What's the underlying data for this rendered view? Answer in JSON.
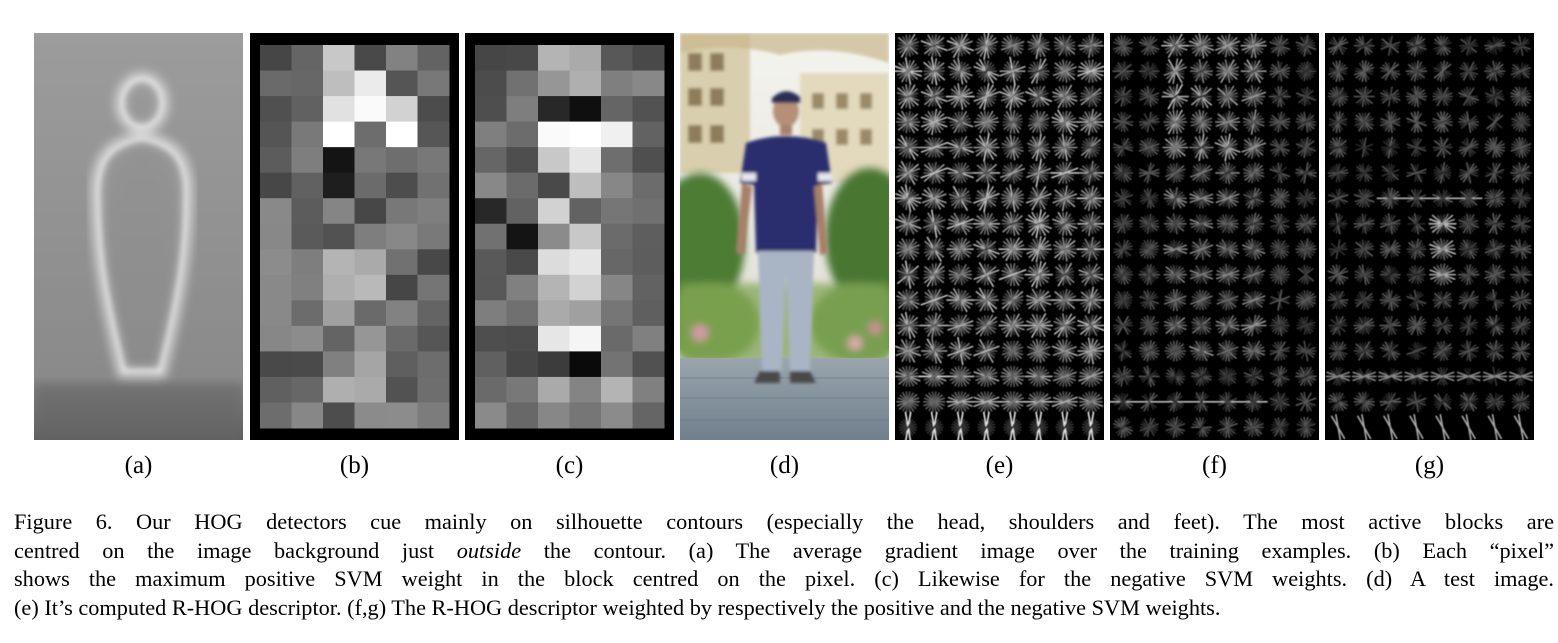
{
  "figure": {
    "panels": [
      {
        "id": "a",
        "label": "(a)",
        "content": "average-gradient-image"
      },
      {
        "id": "b",
        "label": "(b)",
        "content": "positive-svm-weight-map"
      },
      {
        "id": "c",
        "label": "(c)",
        "content": "negative-svm-weight-map"
      },
      {
        "id": "d",
        "label": "(d)",
        "content": "test-image-person"
      },
      {
        "id": "e",
        "label": "(e)",
        "content": "r-hog-descriptor"
      },
      {
        "id": "f",
        "label": "(f)",
        "content": "r-hog-positive-weighted"
      },
      {
        "id": "g",
        "label": "(g)",
        "content": "r-hog-negative-weighted"
      }
    ],
    "caption": {
      "line1": "Figure 6. Our HOG detectors cue mainly on silhouette contours (especially the head, shoulders and feet).  The most active blocks are",
      "line2_pre": "centred on the image background just ",
      "line2_em": "outside",
      "line2_post": " the contour.  (a) The average gradient image over the training examples.  (b) Each “pixel”",
      "line3": "shows the maximum positive SVM weight in the block centred on the pixel. (c) Likewise for the negative SVM weights. (d) A test image.",
      "line4": "(e) It’s computed R-HOG descriptor. (f,g) The R-HOG descriptor weighted by respectively the positive and the negative SVM weights."
    }
  },
  "colors": {
    "sky": "#e9eef2",
    "shirt": "#2b2f6e",
    "jeans": "#a9b4c4",
    "foliage": "#4f7f3a",
    "pavement": "#8a97a3"
  }
}
